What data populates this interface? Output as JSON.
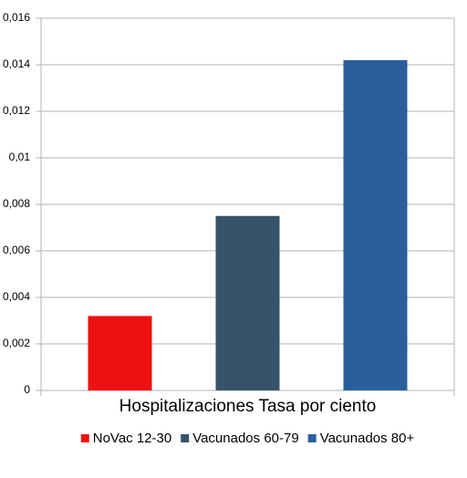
{
  "chart_data": {
    "type": "bar",
    "categories": [
      "Hospitalizaciones Tasa por ciento"
    ],
    "series": [
      {
        "name": "NoVac 12-30",
        "color": "#ee1111",
        "values": [
          0.0032
        ]
      },
      {
        "name": "Vacunados 60-79",
        "color": "#36536b",
        "values": [
          0.0075
        ]
      },
      {
        "name": "Vacunados 80+",
        "color": "#2a5f9e",
        "values": [
          0.0142
        ]
      }
    ],
    "ylim": [
      0,
      0.016
    ],
    "yticks": [
      0,
      {
        "value": 0.002,
        "label": "0,002"
      },
      {
        "value": 0.004,
        "label": "0,004"
      },
      {
        "value": 0.006,
        "label": "0,006"
      },
      {
        "value": 0.008,
        "label": "0,008"
      },
      {
        "value": 0.01,
        "label": "0,01"
      },
      {
        "value": 0.012,
        "label": "0,012"
      },
      {
        "value": 0.014,
        "label": "0,014"
      },
      {
        "value": 0.016,
        "label": "0,016"
      }
    ],
    "grid": true,
    "legend": "bottom"
  }
}
